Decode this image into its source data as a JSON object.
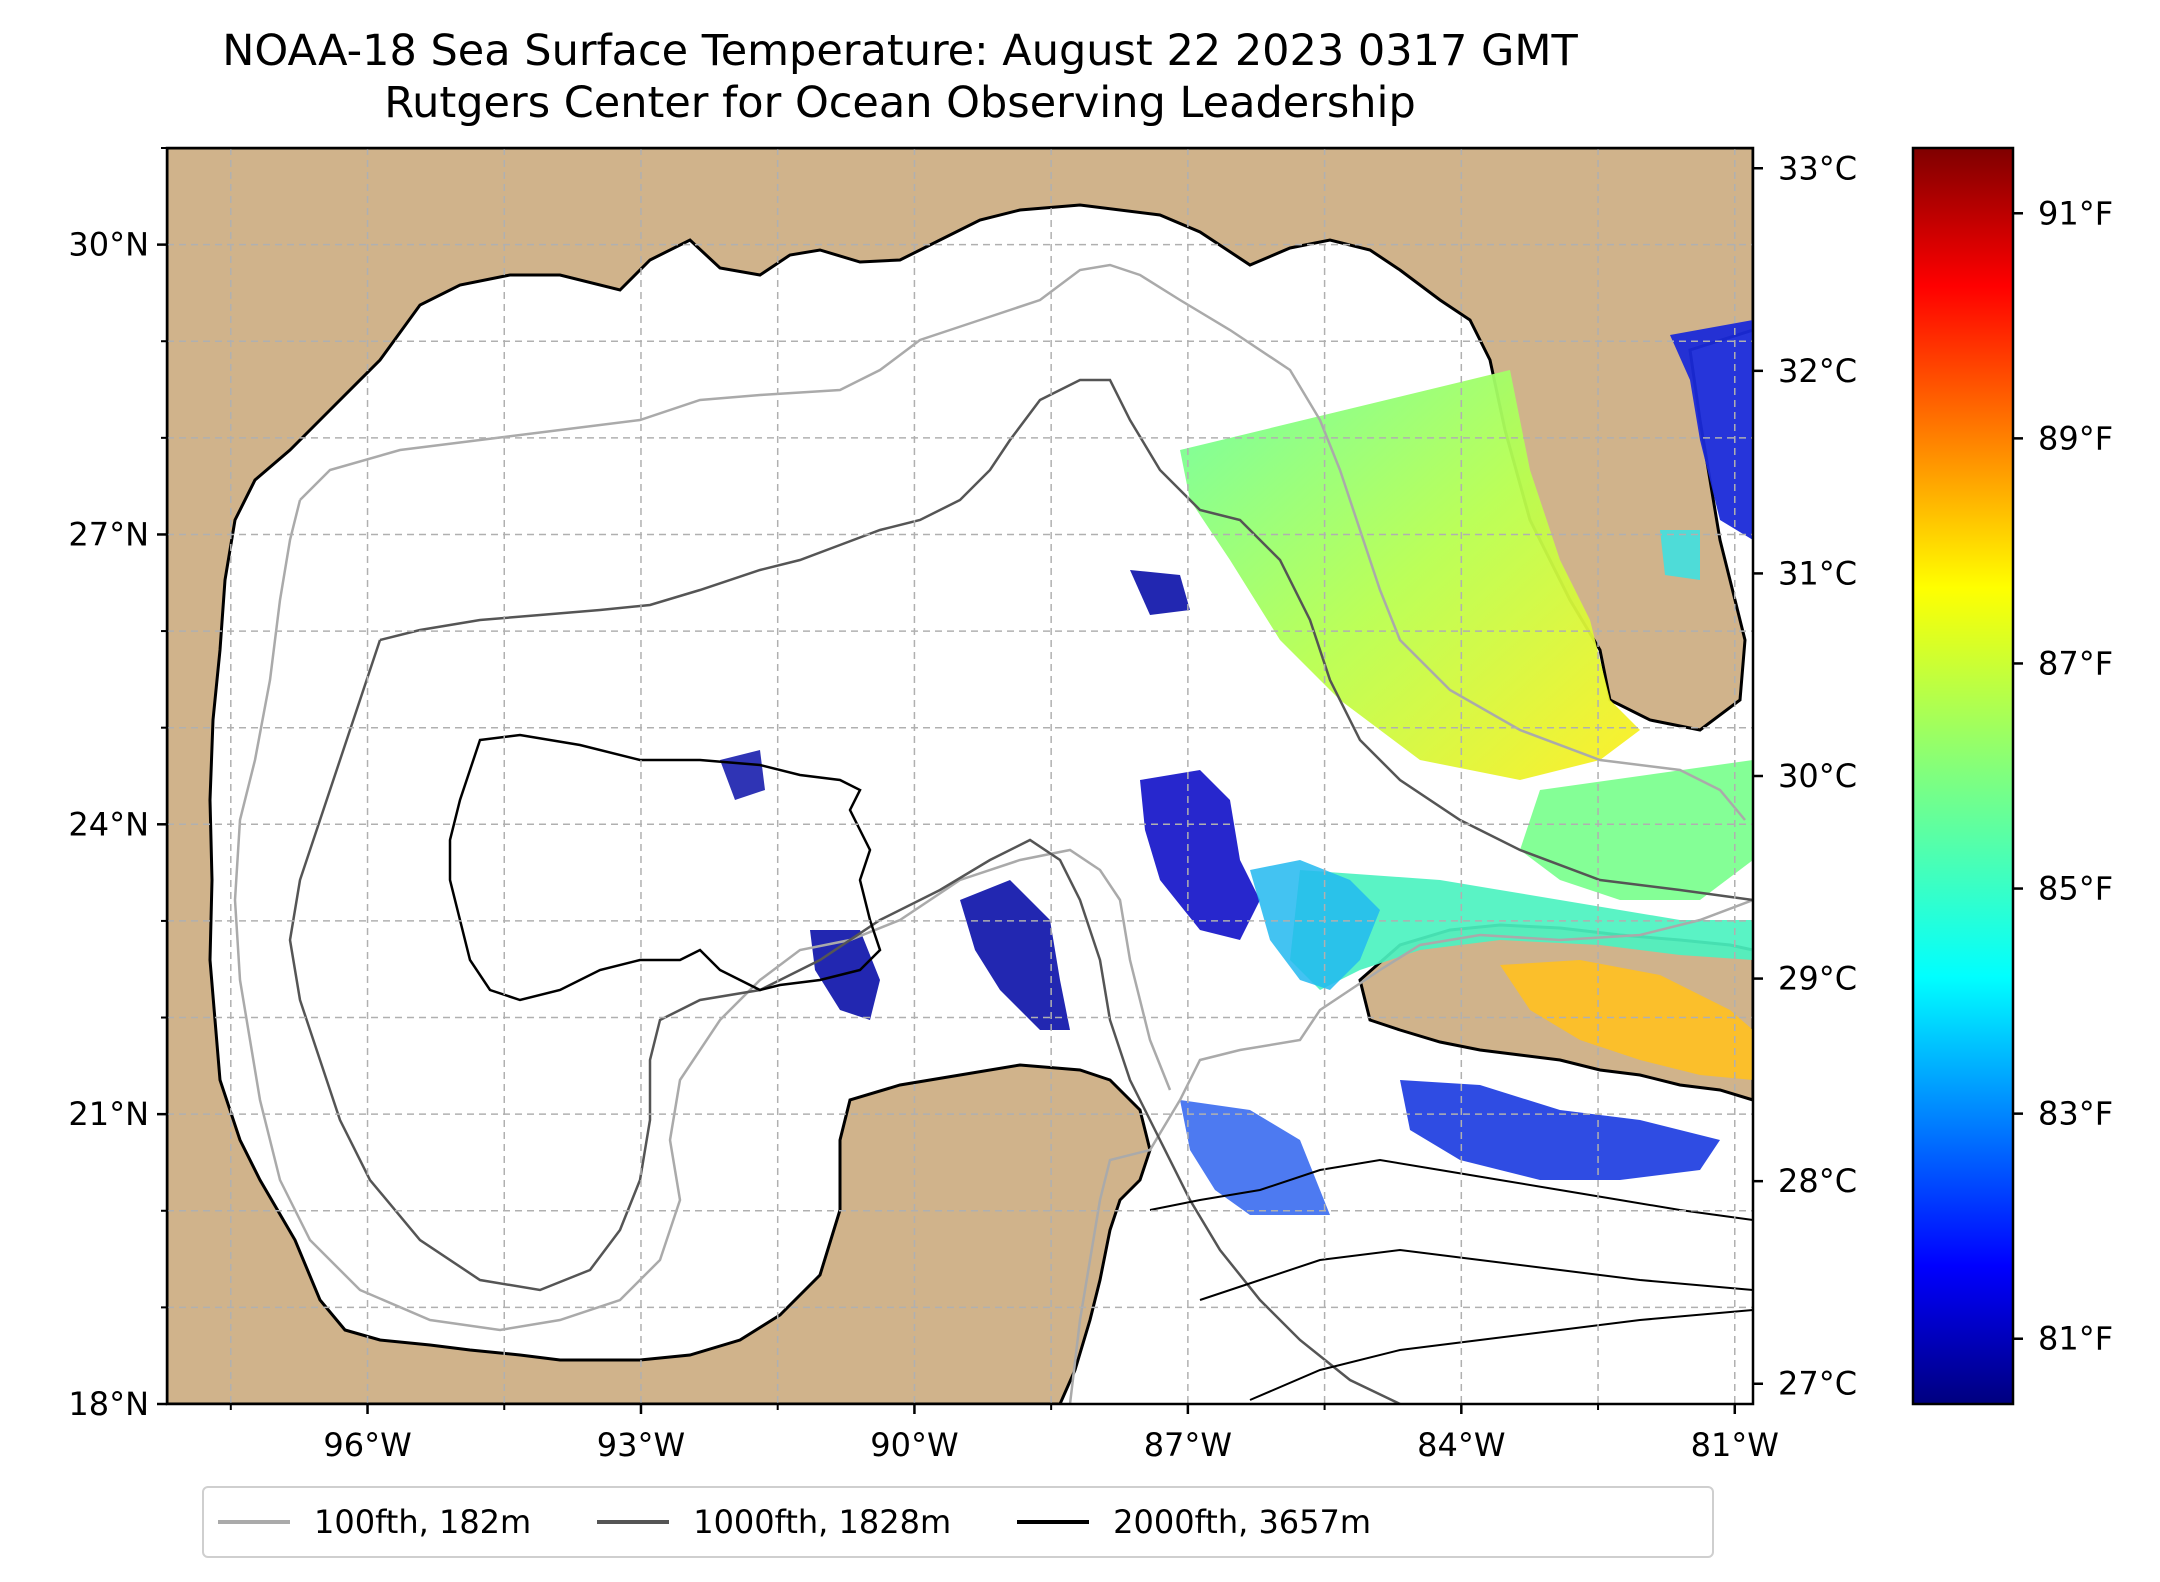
{
  "title": "NOAA-18 Sea Surface Temperature: August 22 2023 0317 GMT",
  "subtitle": "Rutgers Center for Ocean Observing Leadership",
  "map": {
    "lon_range": [
      -98.2,
      -80.8
    ],
    "lat_range": [
      18.0,
      31.0
    ],
    "lat_ticks": [
      "30°N",
      "27°N",
      "24°N",
      "21°N",
      "18°N"
    ],
    "lon_ticks": [
      "96°W",
      "93°W",
      "90°W",
      "87°W",
      "84°W",
      "81°W"
    ],
    "grid": "dashed",
    "land_color": "#d0b38b",
    "water_body_color": "#9bb9e0"
  },
  "colorbar": {
    "colormap": "jet",
    "celsius_range": [
      26.9,
      33.1
    ],
    "celsius_ticks": [
      "33°C",
      "32°C",
      "31°C",
      "30°C",
      "29°C",
      "28°C",
      "27°C"
    ],
    "fahrenheit_ticks": [
      "91°F",
      "89°F",
      "87°F",
      "85°F",
      "83°F",
      "81°F"
    ]
  },
  "legend": [
    {
      "label": "100fth, 182m",
      "color": "#aaaaaa"
    },
    {
      "label": "1000fth, 1828m",
      "color": "#555555"
    },
    {
      "label": "2000fth, 3657m",
      "color": "#000000"
    }
  ]
}
